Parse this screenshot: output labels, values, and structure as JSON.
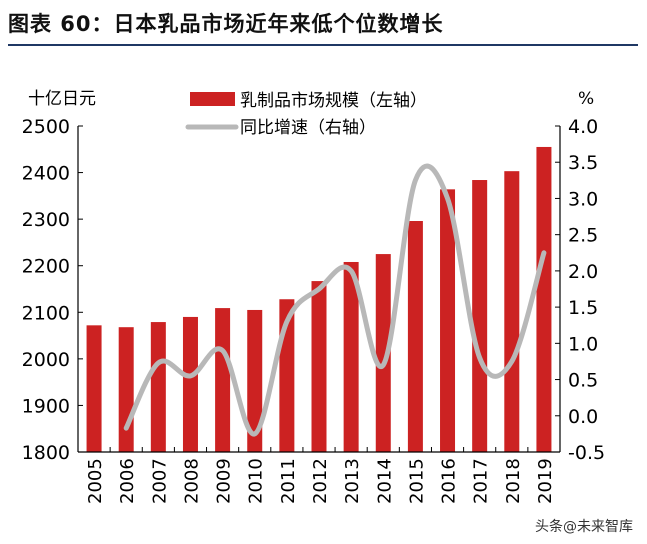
{
  "title": "图表 60：日本乳品市场近年来低个位数增长",
  "watermark": "头条@未来智库",
  "chart_data": {
    "type": "bar+line",
    "categories": [
      "2005",
      "2006",
      "2007",
      "2008",
      "2009",
      "2010",
      "2011",
      "2012",
      "2013",
      "2014",
      "2015",
      "2016",
      "2017",
      "2018",
      "2019"
    ],
    "series": [
      {
        "name": "乳制品市场规模（左轴）",
        "type": "bar",
        "axis": "left",
        "color": "#cc2222",
        "values": [
          2072,
          2068,
          2079,
          2090,
          2109,
          2105,
          2128,
          2167,
          2208,
          2225,
          2296,
          2364,
          2384,
          2403,
          2455
        ]
      },
      {
        "name": "同比增速（右轴）",
        "type": "line",
        "axis": "right",
        "color": "#b8b8b8",
        "values": [
          null,
          -0.17,
          0.73,
          0.55,
          0.9,
          -0.25,
          1.3,
          1.75,
          2.0,
          0.7,
          3.25,
          3.0,
          0.8,
          0.75,
          2.25
        ]
      }
    ],
    "ylabel_left": "十亿日元",
    "ylabel_right": "%",
    "ylim_left": [
      1800,
      2500
    ],
    "yticks_left": [
      "1800",
      "1900",
      "2000",
      "2100",
      "2200",
      "2300",
      "2400",
      "2500"
    ],
    "ylim_right": [
      -0.5,
      4.0
    ],
    "yticks_right": [
      "-0.5",
      "0.0",
      "0.5",
      "1.0",
      "1.5",
      "2.0",
      "2.5",
      "3.0",
      "3.5",
      "4.0"
    ],
    "grid": false,
    "legend": "top"
  }
}
